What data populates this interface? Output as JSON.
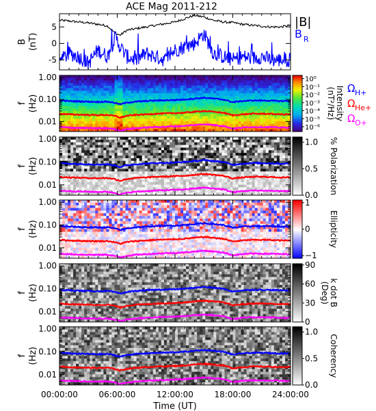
{
  "chart_data": {
    "type": "heatmap",
    "title": "ACE Mag 2011-212",
    "xlabel": "Time (UT)",
    "x_ticks": [
      "00:00:00",
      "06:00:00",
      "12:00:00",
      "18:00:00",
      "24:00:00"
    ],
    "xlim": [
      0,
      24
    ],
    "gyro_lines": [
      {
        "name": "Ω",
        "sub": "H+",
        "color": "#0000ff",
        "t": [
          0,
          1,
          2,
          3,
          4,
          5,
          5.8,
          6.3,
          7,
          8,
          9,
          10,
          11,
          12,
          13,
          14,
          15,
          16,
          17,
          18,
          19,
          20,
          21,
          22,
          23,
          24
        ],
        "f": [
          0.09,
          0.085,
          0.082,
          0.08,
          0.078,
          0.08,
          0.07,
          0.06,
          0.072,
          0.08,
          0.085,
          0.09,
          0.092,
          0.095,
          0.1,
          0.11,
          0.12,
          0.11,
          0.1,
          0.075,
          0.085,
          0.09,
          0.09,
          0.088,
          0.085,
          0.085
        ]
      },
      {
        "name": "Ω",
        "sub": "He+",
        "color": "#ff0000",
        "t": [
          0,
          1,
          2,
          3,
          4,
          5,
          5.8,
          6.3,
          7,
          8,
          9,
          10,
          11,
          12,
          13,
          14,
          15,
          16,
          17,
          18,
          19,
          20,
          21,
          22,
          23,
          24
        ],
        "f": [
          0.0225,
          0.021,
          0.0205,
          0.02,
          0.0195,
          0.02,
          0.0175,
          0.015,
          0.018,
          0.02,
          0.021,
          0.0225,
          0.023,
          0.024,
          0.025,
          0.0275,
          0.03,
          0.0275,
          0.025,
          0.019,
          0.021,
          0.0225,
          0.0225,
          0.022,
          0.021,
          0.021
        ]
      },
      {
        "name": "Ω",
        "sub": "O+",
        "color": "#ff00ff",
        "t": [
          0,
          1,
          2,
          3,
          4,
          5,
          5.8,
          6.3,
          7,
          8,
          9,
          10,
          11,
          12,
          13,
          14,
          15,
          16,
          17,
          18,
          19,
          20,
          21,
          22,
          23,
          24
        ],
        "f": [
          0.0056,
          0.0053,
          0.0051,
          0.005,
          0.0049,
          0.005,
          0.0044,
          0.0038,
          0.0045,
          0.005,
          0.0053,
          0.0056,
          0.0058,
          0.006,
          0.0063,
          0.0069,
          0.0075,
          0.0069,
          0.0063,
          0.0047,
          0.0053,
          0.0056,
          0.0056,
          0.0055,
          0.0053,
          0.0053
        ]
      }
    ],
    "panels": [
      {
        "id": "field",
        "type": "line",
        "ylabel": "B",
        "yunit": "(nT)",
        "ylim": [
          -8,
          9
        ],
        "y_ticks": [
          "5",
          "0",
          "-5"
        ],
        "y_tick_values": [
          5,
          0,
          -5
        ],
        "series": [
          {
            "name": "|B|",
            "color": "#000000",
            "t": [
              0,
              1,
              2,
              3,
              4,
              5,
              5.8,
              6.3,
              7,
              8,
              9,
              10,
              11,
              12,
              13,
              14,
              15,
              16,
              17,
              18,
              19,
              20,
              21,
              22,
              23,
              24
            ],
            "v": [
              7,
              6.8,
              6.5,
              6.2,
              5.8,
              5.3,
              3.0,
              2.5,
              4.0,
              4.5,
              5.0,
              5.5,
              6.0,
              6.5,
              7.5,
              8.5,
              8.0,
              7.0,
              6.5,
              6.3,
              5.8,
              5.5,
              5.2,
              5.0,
              5.0,
              5.5
            ]
          },
          {
            "name": "B",
            "sub": "R",
            "color": "#0000ff",
            "t": [
              0,
              1,
              2,
              3,
              4,
              5,
              5.8,
              6.3,
              7,
              8,
              9,
              10,
              11,
              12,
              13,
              14,
              15,
              16,
              17,
              18,
              19,
              20,
              21,
              22,
              23,
              24
            ],
            "v": [
              -5.5,
              -3,
              -4,
              -6,
              -2,
              -4,
              2,
              -1,
              -4,
              -5,
              -3,
              -4,
              -5,
              -2,
              -1,
              0,
              3,
              -3,
              -4,
              -5,
              -4,
              -4.5,
              -4,
              -5,
              -5,
              -5
            ]
          }
        ]
      },
      {
        "id": "intensity",
        "type": "heatmap",
        "colormap": "rainbow",
        "ylabel": "f",
        "yunit": "(Hz)",
        "yscale": "log",
        "ylim": [
          0.0035,
          1.25
        ],
        "y_ticks": [
          "1.00",
          "0.10",
          "0.01"
        ],
        "y_tick_values": [
          1,
          0.1,
          0.01
        ],
        "colorbar": {
          "label": "Intensity",
          "unit": "(nT²/Hz)",
          "scale": "log",
          "ticks": [
            "10⁰",
            "10⁻¹",
            "10⁻²",
            "10⁻³",
            "10⁻⁴",
            "10⁻⁵",
            "10⁻⁶"
          ],
          "tick_values": [
            0,
            -1,
            -2,
            -3,
            -4,
            -5,
            -6
          ],
          "range": [
            -6.6,
            0.4
          ]
        }
      },
      {
        "id": "polarization",
        "type": "heatmap",
        "colormap": "gray",
        "ylabel": "f",
        "yunit": "(Hz)",
        "yscale": "log",
        "ylim": [
          0.0035,
          1.25
        ],
        "y_ticks": [
          "1.00",
          "0.10",
          "0.01"
        ],
        "y_tick_values": [
          1,
          0.1,
          0.01
        ],
        "colorbar": {
          "label": "% Polarization",
          "ticks": [
            "1.0",
            "0.5",
            "0.0"
          ],
          "tick_values": [
            1,
            0.5,
            0
          ],
          "range": [
            0,
            1.1
          ]
        }
      },
      {
        "id": "ellipticity",
        "type": "heatmap",
        "colormap": "bwr",
        "ylabel": "f",
        "yunit": "(Hz)",
        "yscale": "log",
        "ylim": [
          0.0035,
          1.25
        ],
        "y_ticks": [
          "1.00",
          "0.10",
          "0.01"
        ],
        "y_tick_values": [
          1,
          0.1,
          0.01
        ],
        "colorbar": {
          "label": "Ellipticity",
          "ticks": [
            "1",
            "0",
            "−1"
          ],
          "tick_values": [
            1,
            0,
            -1
          ],
          "range": [
            -1.1,
            1.1
          ]
        }
      },
      {
        "id": "kdotb",
        "type": "heatmap",
        "colormap": "gray",
        "ylabel": "f",
        "yunit": "(Hz)",
        "yscale": "log",
        "ylim": [
          0.0035,
          1.25
        ],
        "y_ticks": [
          "1.00",
          "0.10",
          "0.01"
        ],
        "y_tick_values": [
          1,
          0.1,
          0.01
        ],
        "colorbar": {
          "label": "k dot B",
          "unit": "(Deg)",
          "ticks": [
            "90",
            "60",
            "30",
            "0"
          ],
          "tick_values": [
            90,
            60,
            30,
            0
          ],
          "range": [
            0,
            92
          ]
        }
      },
      {
        "id": "coherency",
        "type": "heatmap",
        "colormap": "gray",
        "ylabel": "f",
        "yunit": "(Hz)",
        "yscale": "log",
        "ylim": [
          0.0035,
          1.25
        ],
        "y_ticks": [
          "1.00",
          "0.10",
          "0.01"
        ],
        "y_tick_values": [
          1,
          0.1,
          0.01
        ],
        "colorbar": {
          "label": "Coherency",
          "ticks": [
            "1.0",
            "0.5",
            "0.0"
          ],
          "tick_values": [
            1,
            0.5,
            0
          ],
          "range": [
            0,
            1.1
          ]
        }
      }
    ]
  }
}
